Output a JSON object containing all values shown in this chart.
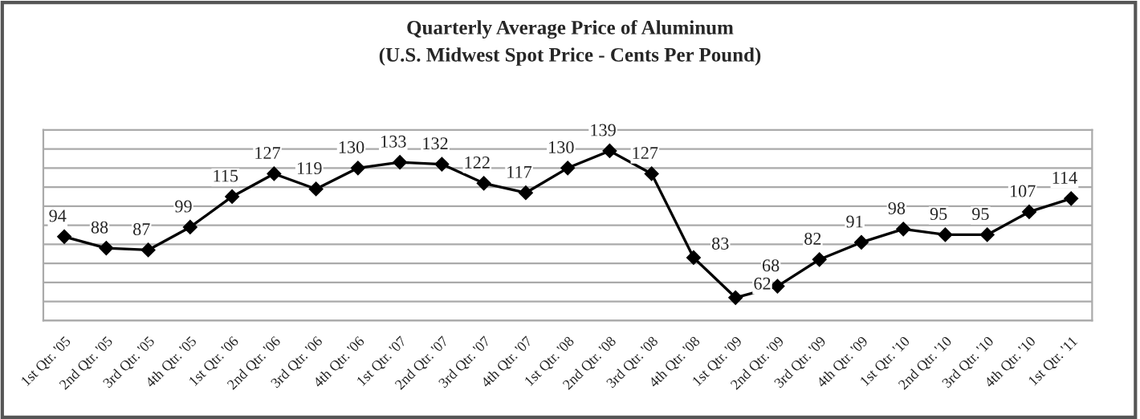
{
  "chart_data": {
    "type": "line",
    "title": "Quarterly Average Price of Aluminum",
    "subtitle": "(U.S. Midwest Spot Price - Cents Per Pound)",
    "categories": [
      "1st Qtr. '05",
      "2nd Qtr. '05",
      "3rd Qtr. '05",
      "4th Qtr. '05",
      "1st Qtr. '06",
      "2nd Qtr. '06",
      "3rd Qtr. '06",
      "4th Qtr. '06",
      "1st Qtr. '07",
      "2nd Qtr. '07",
      "3rd Qtr. '07",
      "4th Qtr. '07",
      "1st Qtr. '08",
      "2nd Qtr. '08",
      "3rd Qtr. '08",
      "4th Qtr. '08",
      "1st Qtr. '09",
      "2nd Qtr. '09",
      "3rd Qtr. '09",
      "4th Qtr. '09",
      "1st Qtr. '10",
      "2nd Qtr. '10",
      "3rd Qtr. '10",
      "4th Qtr. '10",
      "1st Qtr. '11"
    ],
    "series": [
      {
        "color": "#000000",
        "values": [
          94,
          88,
          87,
          99,
          115,
          127,
          119,
          130,
          133,
          132,
          122,
          117,
          130,
          139,
          127,
          83,
          62,
          68,
          82,
          91,
          98,
          95,
          95,
          107,
          114
        ]
      }
    ],
    "ylim": [
      50,
      150
    ],
    "yticks": [
      {
        "value": 50,
        "label": null
      },
      {
        "value": 60,
        "label": null
      },
      {
        "value": 70,
        "label": null
      },
      {
        "value": 80,
        "label": null
      },
      {
        "value": 90,
        "label": null
      },
      {
        "value": 100,
        "label": null
      },
      {
        "value": 110,
        "label": null
      },
      {
        "value": 120,
        "label": null
      },
      {
        "value": 130,
        "label": null
      },
      {
        "value": 140,
        "label": null
      },
      {
        "value": 150,
        "label": null
      }
    ],
    "tick_labels": "x",
    "grid": "y",
    "marker": "diamond",
    "line_style": "solid",
    "data_labels": true
  }
}
